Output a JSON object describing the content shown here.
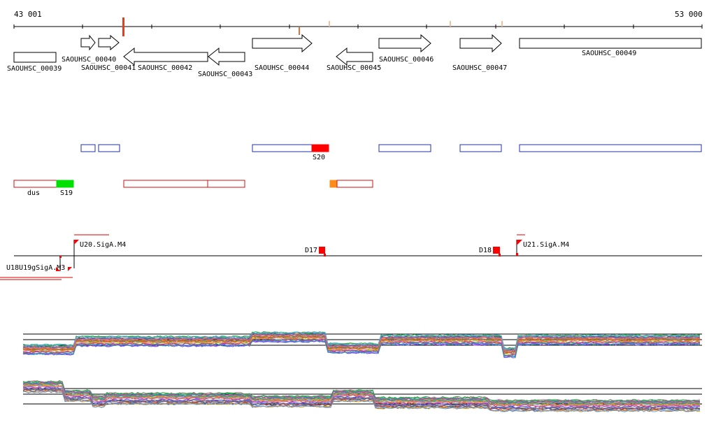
{
  "coordinates": {
    "start": "43 001",
    "end": "53 000"
  },
  "genes": [
    {
      "name": "SAOUHSC_00039",
      "strand": "none"
    },
    {
      "name": "SAOUHSC_00040",
      "strand": "+"
    },
    {
      "name": "SAOUHSC_00041",
      "strand": "+"
    },
    {
      "name": "SAOUHSC_00042",
      "strand": "-"
    },
    {
      "name": "SAOUHSC_00043",
      "strand": "-"
    },
    {
      "name": "SAOUHSC_00044",
      "strand": "+"
    },
    {
      "name": "SAOUHSC_00045",
      "strand": "-"
    },
    {
      "name": "SAOUHSC_00046",
      "strand": "+"
    },
    {
      "name": "SAOUHSC_00047",
      "strand": "+"
    },
    {
      "name": "SAOUHSC_00049",
      "strand": "none"
    }
  ],
  "segment_labels": {
    "s20": "S20",
    "dus": "dus",
    "s19": "S19"
  },
  "promoters": {
    "u20": "U20.SigA.M4",
    "u21": "U21.SigA.M4",
    "u18_u19": "U18U19gSigA.M3"
  },
  "terminators": {
    "d17": "D17",
    "d18": "D18"
  },
  "colors": {
    "feature_outline": "#000000",
    "blue_segment": "#1f2fa8",
    "red_segment": "#d01010",
    "highlight_red": "#ff0000",
    "highlight_green": "#00e000",
    "highlight_orange": "#ff8c1a",
    "tick_marker": "#e06030"
  }
}
